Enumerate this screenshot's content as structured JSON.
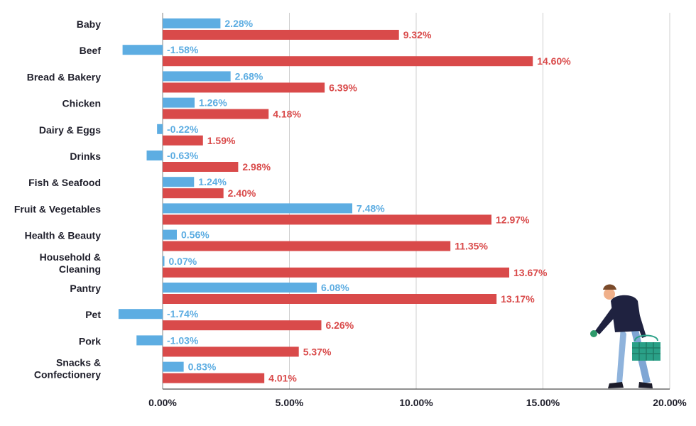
{
  "chart_data": {
    "type": "bar",
    "orientation": "horizontal",
    "categories": [
      "Baby",
      "Beef",
      "Bread & Bakery",
      "Chicken",
      "Dairy & Eggs",
      "Drinks",
      "Fish & Seafood",
      "Fruit & Vegetables",
      "Health & Beauty",
      "Household &\nCleaning",
      "Pantry",
      "Pet",
      "Pork",
      "Snacks &\nConfectionery"
    ],
    "series": [
      {
        "color": "#5dade2",
        "values": [
          2.28,
          -1.58,
          2.68,
          1.26,
          -0.22,
          -0.63,
          1.24,
          7.48,
          0.56,
          0.07,
          6.08,
          -1.74,
          -1.03,
          0.83
        ],
        "labels": [
          "2.28%",
          "-1.58%",
          "2.68%",
          "1.26%",
          "-0.22%",
          "-0.63%",
          "1.24%",
          "7.48%",
          "0.56%",
          "0.07%",
          "6.08%",
          "-1.74%",
          "-1.03%",
          "0.83%"
        ]
      },
      {
        "color": "#d94a4a",
        "values": [
          9.32,
          14.6,
          6.39,
          4.18,
          1.59,
          2.98,
          2.4,
          12.97,
          11.35,
          13.67,
          13.17,
          6.26,
          5.37,
          4.01
        ],
        "labels": [
          "9.32%",
          "14.60%",
          "6.39%",
          "4.18%",
          "1.59%",
          "2.98%",
          "2.40%",
          "12.97%",
          "11.35%",
          "13.67%",
          "13.17%",
          "6.26%",
          "5.37%",
          "4.01%"
        ]
      }
    ],
    "xticks": [
      0,
      5,
      10,
      15,
      20
    ],
    "xtick_labels": [
      "0.00%",
      "5.00%",
      "10.00%",
      "15.00%",
      "20.00%"
    ],
    "xlim": [
      -1.74,
      20
    ],
    "grid": "vertical",
    "legend": "none",
    "title": "",
    "xlabel": "",
    "ylabel": ""
  },
  "illustration": {
    "icon": "shopper-with-basket-icon"
  }
}
